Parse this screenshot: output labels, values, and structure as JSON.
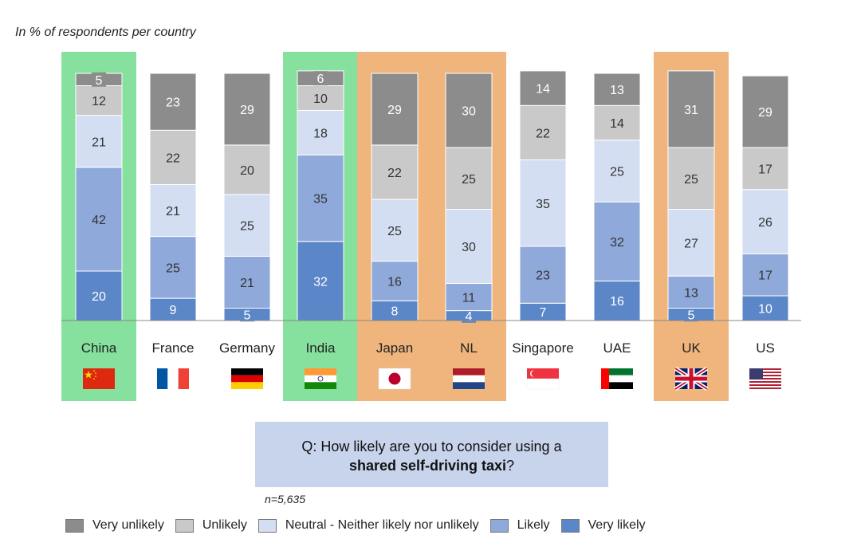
{
  "subtitle": "In % of respondents per country",
  "question": {
    "prefix": "Q: How likely are you to consider using a",
    "emphasis": "shared self-driving taxi",
    "suffix": "?"
  },
  "sample": "n=5,635",
  "colors": {
    "very_unlikely": "#8c8c8c",
    "unlikely": "#c9c9c9",
    "neutral": "#d4def2",
    "likely": "#8fa9da",
    "very_likely": "#5b87c8",
    "highlight_green": "#86e09e",
    "highlight_orange": "#efb57c",
    "axis": "#888888"
  },
  "legend": [
    {
      "key": "very_unlikely",
      "label": "Very unlikely"
    },
    {
      "key": "unlikely",
      "label": "Unlikely"
    },
    {
      "key": "neutral",
      "label": "Neutral - Neither likely nor unlikely"
    },
    {
      "key": "likely",
      "label": "Likely"
    },
    {
      "key": "very_likely",
      "label": "Very likely"
    }
  ],
  "chart_data": {
    "type": "bar",
    "stacked": true,
    "title": "",
    "ylabel": "In % of respondents per country",
    "ylim": [
      0,
      100
    ],
    "grid": false,
    "legend_placement": "bottom",
    "categories": [
      "China",
      "France",
      "Germany",
      "India",
      "Japan",
      "NL",
      "Singapore",
      "UAE",
      "UK",
      "US"
    ],
    "flags": [
      "flag-china-icon",
      "flag-france-icon",
      "flag-germany-icon",
      "flag-india-icon",
      "flag-japan-icon",
      "flag-netherlands-icon",
      "flag-singapore-icon",
      "flag-uae-icon",
      "flag-uk-icon",
      "flag-us-icon"
    ],
    "series": [
      {
        "name": "Very likely",
        "key": "very_likely",
        "values": [
          20,
          9,
          5,
          32,
          8,
          4,
          7,
          16,
          5,
          10
        ]
      },
      {
        "name": "Likely",
        "key": "likely",
        "values": [
          42,
          25,
          21,
          35,
          16,
          11,
          23,
          32,
          13,
          17
        ]
      },
      {
        "name": "Neutral - Neither likely nor unlikely",
        "key": "neutral",
        "values": [
          21,
          21,
          25,
          18,
          25,
          30,
          35,
          25,
          27,
          26
        ]
      },
      {
        "name": "Unlikely",
        "key": "unlikely",
        "values": [
          12,
          22,
          20,
          10,
          22,
          25,
          22,
          14,
          25,
          17
        ]
      },
      {
        "name": "Very unlikely",
        "key": "very_unlikely",
        "values": [
          5,
          23,
          29,
          6,
          29,
          30,
          14,
          13,
          31,
          29
        ]
      }
    ],
    "highlights": [
      {
        "categories": [
          "China"
        ],
        "color": "green"
      },
      {
        "categories": [
          "India"
        ],
        "color": "green"
      },
      {
        "categories": [
          "Japan",
          "NL"
        ],
        "color": "orange"
      },
      {
        "categories": [
          "UK"
        ],
        "color": "orange"
      }
    ]
  }
}
